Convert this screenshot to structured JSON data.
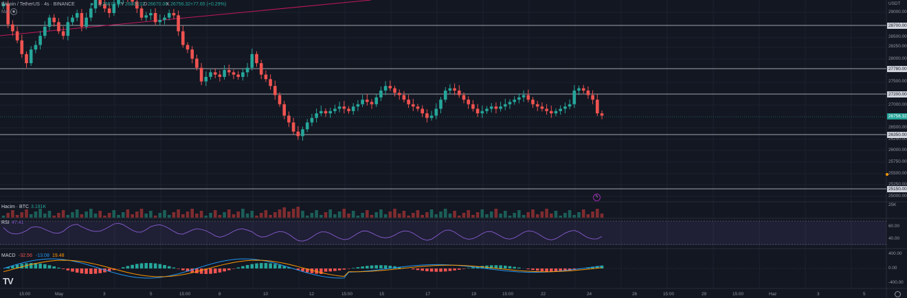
{
  "header": {
    "symbol_title": "Bitcoin / TetherUS · 4s · BINANCE",
    "ohlc": {
      "o_label": "A",
      "o_val": "26678.67",
      "h_label": "Y",
      "h_val": "26803.02",
      "l_label": "D",
      "l_val": "26670.00",
      "c_label": "K",
      "c_val": "26756.32",
      "change": "+77.65 (+0.29%)"
    },
    "ma_label": "MA"
  },
  "price_axis": {
    "currency": "USDT",
    "ticks": [
      "29000.00",
      "28500.00",
      "28250.00",
      "28000.00",
      "27500.00",
      "27000.00",
      "26500.00",
      "26250.00",
      "26000.00",
      "25750.00",
      "25500.00",
      "25250.00",
      "25000.00"
    ],
    "horizontal_levels": [
      "28700.00",
      "27780.00",
      "27200.00",
      "26350.00",
      "25150.00"
    ],
    "current_price": "26756.32"
  },
  "volume": {
    "label": "Hacim · BTC",
    "value": "3.191K",
    "axis_tick": "25K"
  },
  "rsi": {
    "label": "RSI",
    "value": "47.41",
    "ticks": [
      "60.00",
      "40.00"
    ]
  },
  "macd": {
    "label": "MACD",
    "v1": "-32.56",
    "v2": "-13.08",
    "v3": "19.48",
    "ticks": [
      "400.00",
      "0.00",
      "-400.00"
    ]
  },
  "time_axis": [
    "15:00",
    "May",
    "3",
    "5",
    "15:00",
    "8",
    "10",
    "12",
    "15:00",
    "15",
    "17",
    "19",
    "15:00",
    "22",
    "24",
    "26",
    "15:00",
    "29",
    "15:00",
    "Haz",
    "3",
    "5"
  ],
  "logo": "TV",
  "colors": {
    "up": "#26a69a",
    "down": "#ef5350",
    "bg": "#131722",
    "grid": "#1e222d",
    "trend": "#c2185b",
    "rsi_line": "#7e57c2"
  }
}
